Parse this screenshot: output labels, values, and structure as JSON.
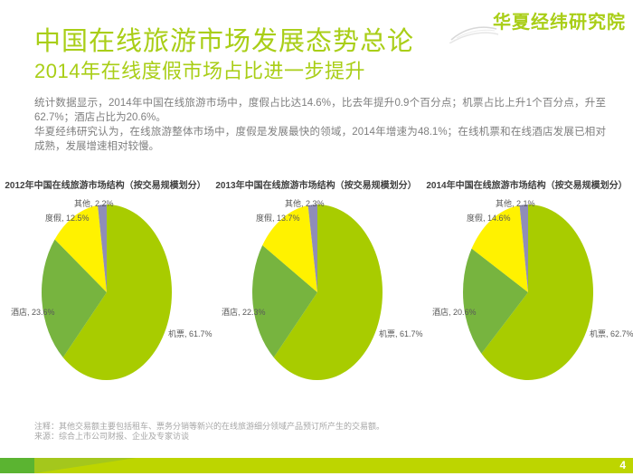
{
  "logo": {
    "text": "华夏经纬研究院"
  },
  "header": {
    "title": "中国在线旅游市场发展态势总论",
    "subtitle": "2014年在线度假市场占比进一步提升"
  },
  "body": {
    "para1": "统计数据显示，2014年中国在线旅游市场中，度假占比达14.6%，比去年提升0.9个百分点；机票占比上升1个百分点，升至62.7%；酒店占比为20.6%。",
    "para2": "华夏经纬研究认为，在线旅游整体市场中，度假是发展最快的领域，2014年增速为48.1%；在线机票和在线酒店发展已相对成熟，发展增速相对较慢。"
  },
  "chart_data": [
    {
      "type": "pie",
      "title": "2012年中国在线旅游市场结构（按交易规模划分）",
      "categories": [
        "机票",
        "酒店",
        "度假",
        "其他"
      ],
      "values": [
        61.7,
        23.6,
        12.5,
        2.2
      ],
      "labels": [
        "机票, 61.7%",
        "酒店, 23.6%",
        "度假, 12.5%",
        "其他, 2.2%"
      ],
      "colors": [
        "#a8cc00",
        "#77b43f",
        "#fff200",
        "#8f8db8"
      ],
      "legend_position": "none",
      "start_angle_deg": 0,
      "direction": "clockwise"
    },
    {
      "type": "pie",
      "title": "2013年中国在线旅游市场结构（按交易规模划分）",
      "categories": [
        "机票",
        "酒店",
        "度假",
        "其他"
      ],
      "values": [
        61.7,
        22.3,
        13.7,
        2.3
      ],
      "labels": [
        "机票, 61.7%",
        "酒店, 22.3%",
        "度假, 13.7%",
        "其他, 2.3%"
      ],
      "colors": [
        "#a8cc00",
        "#77b43f",
        "#fff200",
        "#8f8db8"
      ],
      "legend_position": "none",
      "start_angle_deg": 0,
      "direction": "clockwise"
    },
    {
      "type": "pie",
      "title": "2014年中国在线旅游市场结构（按交易规模划分）",
      "categories": [
        "机票",
        "酒店",
        "度假",
        "其他"
      ],
      "values": [
        62.7,
        20.6,
        14.6,
        2.1
      ],
      "labels": [
        "机票, 62.7%",
        "酒店, 20.6%",
        "度假, 14.6%",
        "其他, 2.1%"
      ],
      "colors": [
        "#a8cc00",
        "#77b43f",
        "#fff200",
        "#8f8db8"
      ],
      "legend_position": "none",
      "start_angle_deg": 0,
      "direction": "clockwise"
    }
  ],
  "footer": {
    "note": "注释：其他交易额主要包括租车、票务分销等新兴的在线旅游细分领域产品预订所产生的交易额。",
    "source": "来源：综合上市公司财报、企业及专家访谈",
    "page_number": "4"
  },
  "colors": {
    "accent_green": "#a9ce17",
    "bar_chartreuse": "#bdd500",
    "bar_dark_green": "#5bb431",
    "bar_wedge_green": "#a4c71c",
    "body_text_gray": "#7f7f7f"
  }
}
